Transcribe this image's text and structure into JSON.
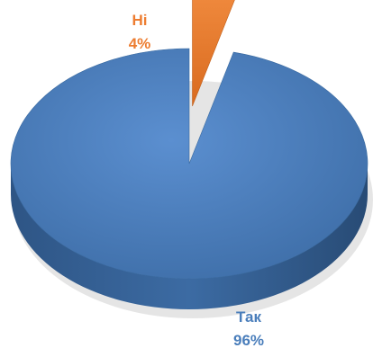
{
  "chart_data": {
    "type": "pie",
    "title": "",
    "series": [
      {
        "values": [
          4,
          96
        ]
      }
    ],
    "slices": [
      {
        "category": "Ні",
        "value": 4,
        "percent_label": "4%",
        "color": "#ED7D31",
        "exploded": true
      },
      {
        "category": "Так",
        "value": 96,
        "percent_label": "96%",
        "color": "#4A7EBB",
        "exploded": false
      }
    ],
    "start_angle_deg": -90,
    "legend": "none",
    "style": "3d"
  }
}
